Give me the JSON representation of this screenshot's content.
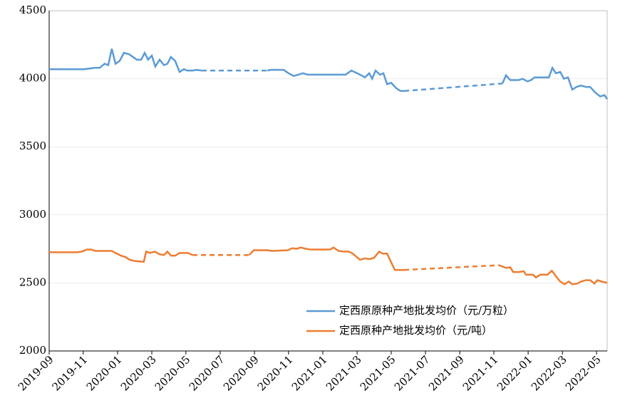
{
  "chart_data": {
    "type": "line",
    "xlim": [
      2019.667,
      2022.385
    ],
    "xticks": [
      {
        "value": 2019.667,
        "label": "2019-09"
      },
      {
        "value": 2019.833,
        "label": "2019-11"
      },
      {
        "value": 2020.0,
        "label": "2020-01"
      },
      {
        "value": 2020.167,
        "label": "2020-03"
      },
      {
        "value": 2020.333,
        "label": "2020-05"
      },
      {
        "value": 2020.5,
        "label": "2020-07"
      },
      {
        "value": 2020.667,
        "label": "2020-09"
      },
      {
        "value": 2020.833,
        "label": "2020-11"
      },
      {
        "value": 2021.0,
        "label": "2021-01"
      },
      {
        "value": 2021.167,
        "label": "2021-03"
      },
      {
        "value": 2021.333,
        "label": "2021-05"
      },
      {
        "value": 2021.5,
        "label": "2021-07"
      },
      {
        "value": 2021.667,
        "label": "2021-09"
      },
      {
        "value": 2021.833,
        "label": "2021-11"
      },
      {
        "value": 2022.0,
        "label": "2022-01"
      },
      {
        "value": 2022.167,
        "label": "2022-03"
      },
      {
        "value": 2022.333,
        "label": "2022-05"
      }
    ],
    "ylim": [
      2000,
      4500
    ],
    "yticks": [
      2000,
      2500,
      3000,
      3500,
      4000,
      4500
    ],
    "grid": true,
    "legend": "lower right",
    "series": [
      {
        "name": "定西原原种产地批发均价（元/万粒）",
        "color": "#5b9bd5",
        "x": [
          2019.667,
          2019.837,
          2019.889,
          2019.913,
          2019.937,
          2019.955,
          2019.972,
          2019.99,
          2020.01,
          2020.031,
          2020.056,
          2020.094,
          2020.115,
          2020.132,
          2020.149,
          2020.167,
          2020.184,
          2020.205,
          2020.226,
          2020.243,
          2020.26,
          2020.281,
          2020.302,
          2020.323,
          2020.34,
          2020.365,
          2020.385,
          2020.41,
          2020.729,
          2020.747,
          2020.809,
          2020.833,
          2020.858,
          2020.903,
          2020.927,
          2021.111,
          2021.139,
          2021.181,
          2021.205,
          2021.226,
          2021.24,
          2021.257,
          2021.278,
          2021.295,
          2021.313,
          2021.333,
          2021.358,
          2021.378,
          2021.396,
          2021.875,
          2021.892,
          2021.913,
          2021.955,
          2021.972,
          2021.997,
          2022.014,
          2022.031,
          2022.101,
          2022.118,
          2022.135,
          2022.156,
          2022.174,
          2022.194,
          2022.215,
          2022.236,
          2022.257,
          2022.281,
          2022.302,
          2022.326,
          2022.351,
          2022.372,
          2022.385
        ],
        "values": [
          4070,
          4070,
          4080,
          4080,
          4110,
          4100,
          4220,
          4110,
          4130,
          4190,
          4180,
          4140,
          4140,
          4190,
          4140,
          4170,
          4090,
          4140,
          4100,
          4110,
          4160,
          4130,
          4050,
          4070,
          4060,
          4060,
          4065,
          4060,
          4060,
          4065,
          4065,
          4040,
          4020,
          4040,
          4030,
          4030,
          4060,
          4030,
          4010,
          4040,
          4000,
          4060,
          4030,
          4040,
          3960,
          3970,
          3930,
          3910,
          3910,
          3965,
          4025,
          3990,
          3990,
          4000,
          3980,
          3990,
          4010,
          4010,
          4080,
          4040,
          4050,
          4000,
          4010,
          3920,
          3940,
          3950,
          3940,
          3940,
          3900,
          3870,
          3880,
          3850
        ]
      },
      {
        "name": "定西原种产地批发均价（元/吨）",
        "color": "#ed7d31",
        "x": [
          2019.667,
          2019.802,
          2019.826,
          2019.851,
          2019.872,
          2019.892,
          2019.972,
          2019.99,
          2020.017,
          2020.038,
          2020.059,
          2020.087,
          2020.128,
          2020.139,
          2020.16,
          2020.181,
          2020.205,
          2020.226,
          2020.243,
          2020.26,
          2020.281,
          2020.302,
          2020.344,
          2020.365,
          2020.642,
          2020.663,
          2020.729,
          2020.753,
          2020.83,
          2020.851,
          2020.872,
          2020.892,
          2020.92,
          2020.941,
          2021.035,
          2021.052,
          2021.076,
          2021.101,
          2021.125,
          2021.146,
          2021.181,
          2021.205,
          2021.229,
          2021.25,
          2021.274,
          2021.292,
          2021.313,
          2021.33,
          2021.351,
          2021.396,
          2021.858,
          2021.875,
          2021.892,
          2021.913,
          2021.927,
          2021.955,
          2021.979,
          2021.99,
          2022.024,
          2022.038,
          2022.059,
          2022.094,
          2022.115,
          2022.135,
          2022.156,
          2022.177,
          2022.198,
          2022.215,
          2022.24,
          2022.257,
          2022.281,
          2022.302,
          2022.323,
          2022.337,
          2022.358,
          2022.385
        ],
        "values": [
          2725,
          2725,
          2730,
          2745,
          2745,
          2735,
          2735,
          2720,
          2700,
          2690,
          2670,
          2660,
          2655,
          2730,
          2720,
          2730,
          2710,
          2705,
          2730,
          2700,
          2700,
          2720,
          2720,
          2705,
          2705,
          2740,
          2740,
          2735,
          2740,
          2755,
          2750,
          2760,
          2750,
          2745,
          2745,
          2760,
          2735,
          2730,
          2730,
          2715,
          2670,
          2680,
          2675,
          2685,
          2730,
          2715,
          2715,
          2660,
          2595,
          2595,
          2630,
          2620,
          2610,
          2615,
          2580,
          2580,
          2585,
          2560,
          2560,
          2540,
          2560,
          2560,
          2590,
          2550,
          2510,
          2490,
          2510,
          2490,
          2495,
          2510,
          2520,
          2520,
          2495,
          2520,
          2510,
          2500
        ]
      }
    ]
  }
}
